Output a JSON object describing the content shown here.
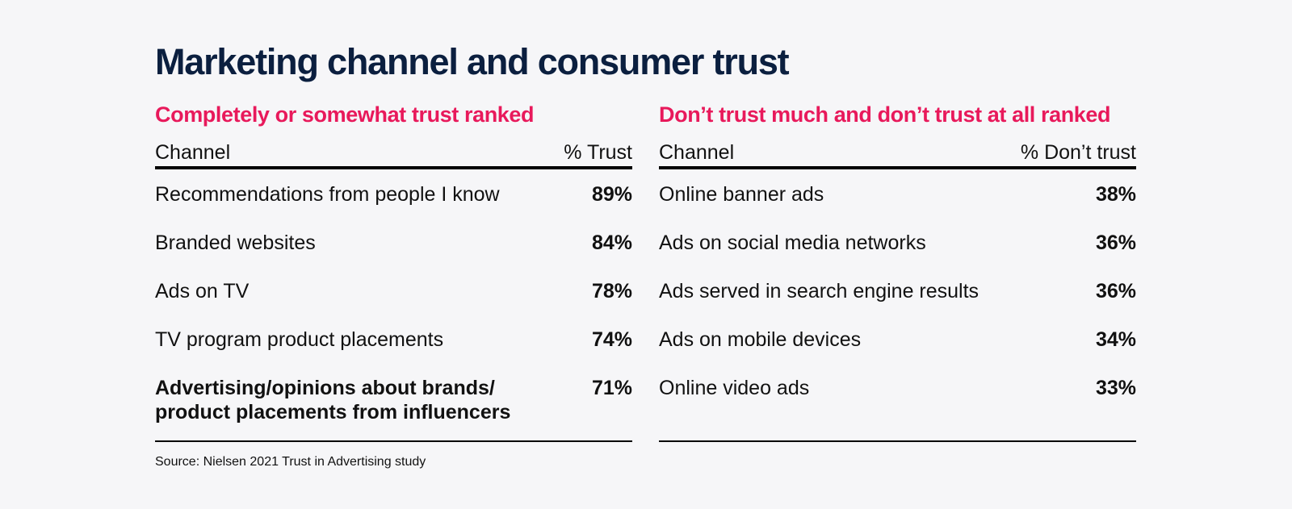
{
  "title": "Marketing channel and consumer trust",
  "colors": {
    "background": "#f6f6f8",
    "title": "#0b1f3f",
    "accent": "#e8195b",
    "text": "#111111"
  },
  "left_table": {
    "subtitle": "Completely or somewhat trust ranked",
    "header_channel": "Channel",
    "header_value": "% Trust",
    "rows": [
      {
        "label": "Recommendations from people I know",
        "value": "89%"
      },
      {
        "label": "Branded websites",
        "value": "84%"
      },
      {
        "label": "Ads on TV",
        "value": "78%"
      },
      {
        "label": "TV program product placements",
        "value": "74%"
      },
      {
        "label": "Advertising/opinions about brands/\nproduct placements from influencers",
        "value": "71%"
      }
    ]
  },
  "right_table": {
    "subtitle": "Don’t trust much and don’t trust at all ranked",
    "header_channel": "Channel",
    "header_value": "% Don’t trust",
    "rows": [
      {
        "label": "Online banner ads",
        "value": "38%"
      },
      {
        "label": "Ads on social media networks",
        "value": "36%"
      },
      {
        "label": "Ads served in search engine results",
        "value": "36%"
      },
      {
        "label": "Ads on mobile devices",
        "value": "34%"
      },
      {
        "label": "Online video ads",
        "value": "33%"
      }
    ]
  },
  "source": "Source: Nielsen 2021 Trust in Advertising study"
}
